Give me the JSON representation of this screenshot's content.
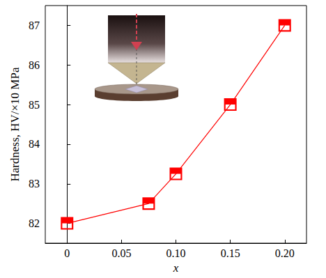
{
  "chart_data": {
    "type": "line",
    "x_label": "x",
    "y_label": "Hardness, HV/×10 MPa",
    "x": [
      0,
      0.075,
      0.1,
      0.15,
      0.2
    ],
    "values": [
      82.0,
      82.5,
      83.25,
      85.0,
      87.0
    ],
    "color": "#ff0000",
    "marker": "square",
    "xlim": [
      -0.02,
      0.22
    ],
    "xticks": [
      0,
      0.05,
      {
        "value": 0.1,
        "label": "0.10"
      },
      0.15,
      {
        "value": 0.2,
        "label": "0.20"
      }
    ],
    "ylim": [
      81.5,
      87.5
    ],
    "yticks": [
      82,
      83,
      84,
      85,
      86,
      87
    ],
    "grid": false
  }
}
